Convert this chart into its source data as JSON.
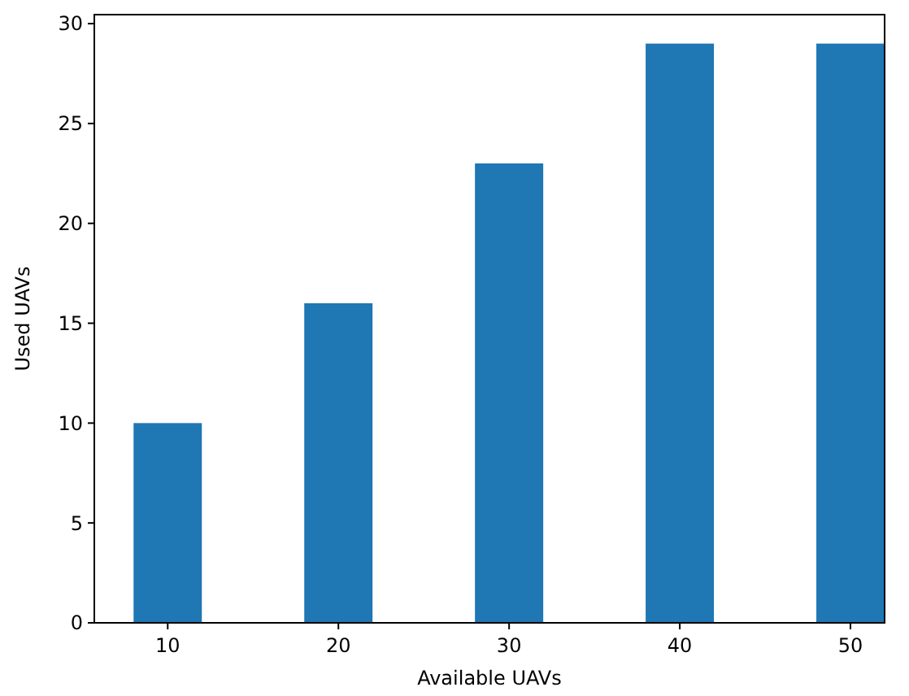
{
  "chart_data": {
    "type": "bar",
    "xlabel": "Available UAVs",
    "ylabel": "Used UAVs",
    "categories": [
      "10",
      "20",
      "30",
      "40",
      "50"
    ],
    "values": [
      10,
      16,
      23,
      29,
      29
    ],
    "color": "#1f77b4",
    "ylim": [
      0,
      30.45
    ],
    "yticks": [
      0,
      5,
      10,
      15,
      20,
      25,
      30
    ],
    "grid": false
  }
}
